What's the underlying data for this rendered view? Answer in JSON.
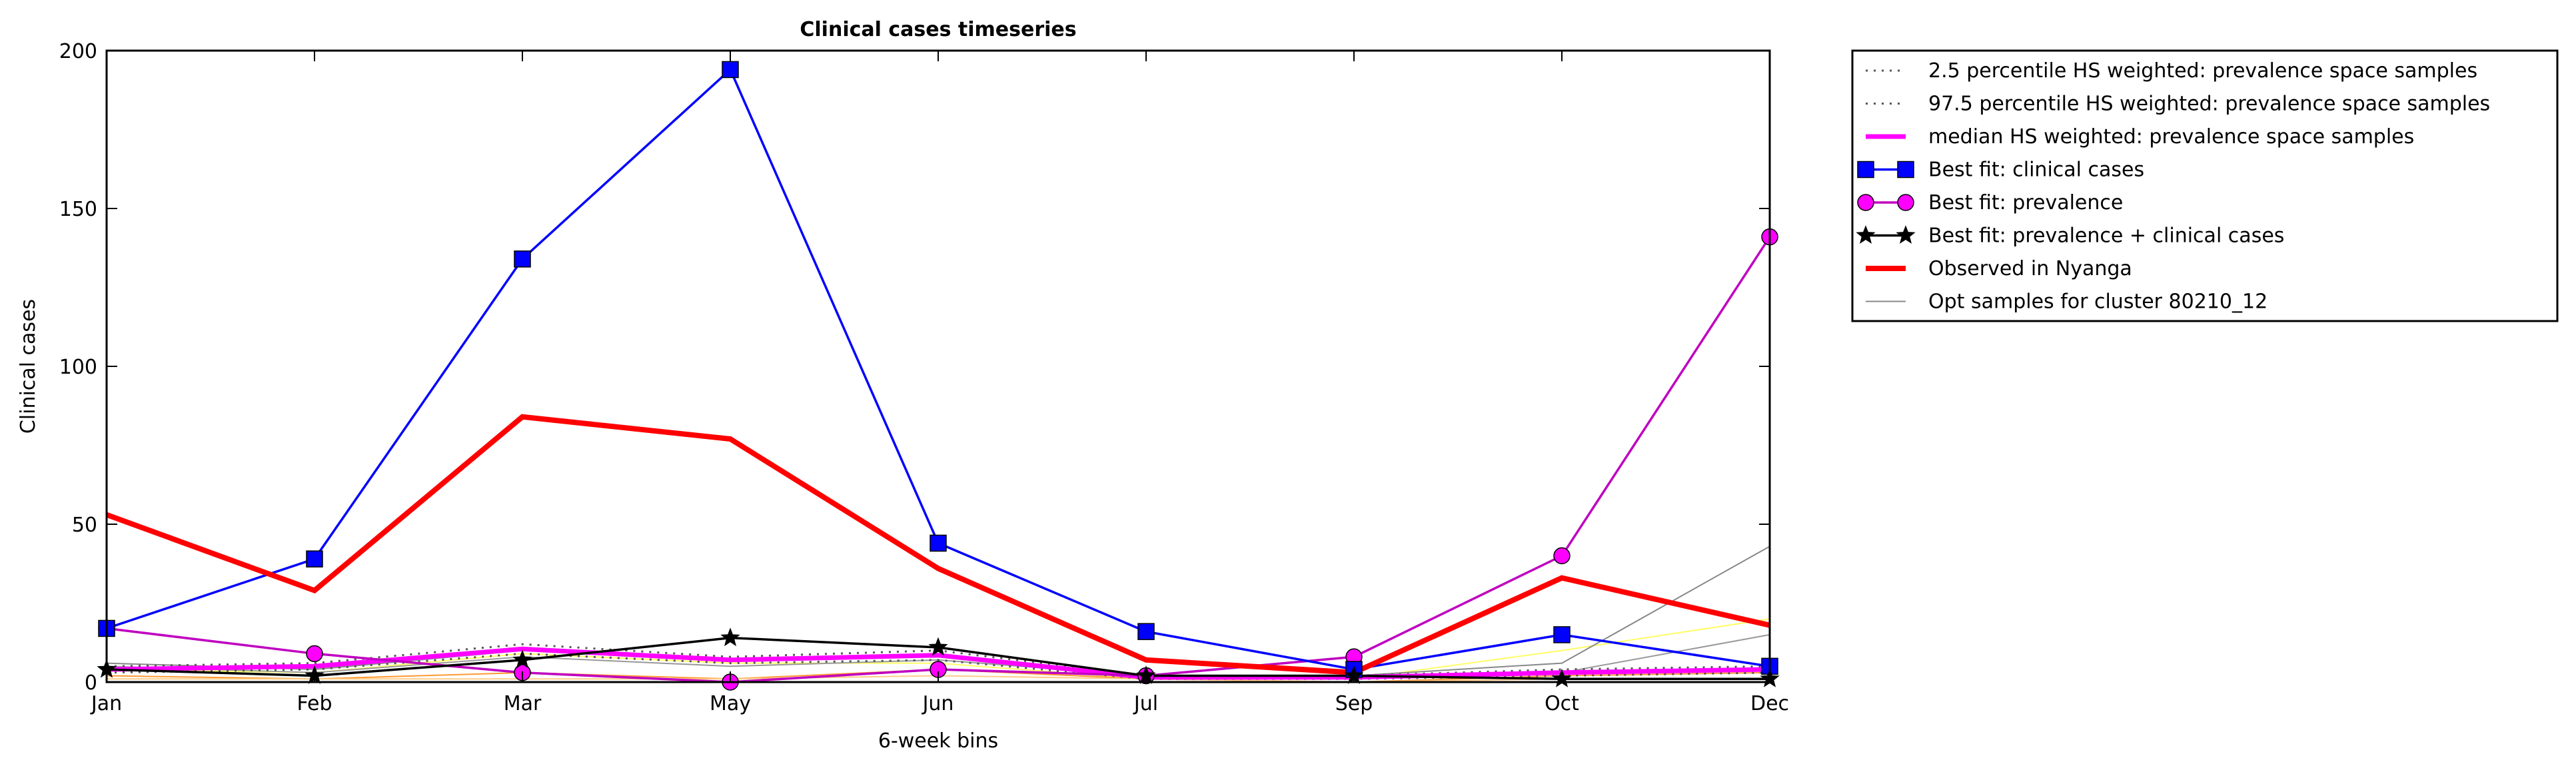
{
  "chart_data": {
    "type": "line",
    "title": "Clinical cases timeseries",
    "xlabel": "6-week bins",
    "ylabel": "Clinical cases",
    "categories": [
      "Jan",
      "Feb",
      "Mar",
      "May",
      "Jun",
      "Jul",
      "Sep",
      "Oct",
      "Dec"
    ],
    "ylim": [
      0,
      200
    ],
    "yticks": [
      0,
      50,
      100,
      150,
      200
    ],
    "grid": false,
    "legend_position": "outside-right-top",
    "series": [
      {
        "name": "2.5 percentile HS weighted: prevalence space samples",
        "style": "dotted",
        "color": "#555555",
        "values": [
          3,
          4,
          9,
          6,
          7,
          1,
          1,
          2,
          3
        ]
      },
      {
        "name": "97.5 percentile HS weighted: prevalence space samples",
        "style": "dotted",
        "color": "#555555",
        "values": [
          5,
          6,
          12,
          8,
          10,
          2,
          2,
          4,
          5
        ]
      },
      {
        "name": "median HS weighted: prevalence space samples",
        "style": "solid",
        "color": "#ff00ff",
        "values": [
          4,
          5,
          10.5,
          7,
          8.5,
          1.5,
          1.5,
          3,
          4
        ]
      },
      {
        "name": "Best fit: clinical cases",
        "style": "marker-square",
        "color": "#0000ff",
        "values": [
          17,
          39,
          134,
          194,
          44,
          16,
          4,
          15,
          5
        ]
      },
      {
        "name": "Best fit: prevalence",
        "style": "marker-circle",
        "color": "#c000c0",
        "values": [
          17,
          9,
          3,
          0,
          4,
          2,
          8,
          40,
          141
        ]
      },
      {
        "name": "Best fit: prevalence + clinical cases",
        "style": "marker-star",
        "color": "#000000",
        "values": [
          4,
          2,
          7,
          14,
          11,
          2,
          2,
          1,
          1
        ]
      },
      {
        "name": "Observed in Nyanga",
        "style": "thick",
        "color": "#ff0000",
        "values": [
          53,
          29,
          84,
          77,
          36,
          7,
          3,
          33,
          18
        ]
      },
      {
        "name": "Opt samples for cluster 80210_12",
        "style": "thin",
        "color": "#888888",
        "values": [
          6,
          4,
          10,
          7,
          8,
          1,
          2,
          6,
          43
        ]
      }
    ],
    "extra_samples": [
      {
        "color": "#ffff66",
        "values": [
          4,
          3,
          9,
          6,
          6,
          1,
          1,
          10,
          20
        ]
      },
      {
        "color": "#ff9933",
        "values": [
          2,
          1,
          3,
          1,
          4,
          1,
          0,
          2,
          3
        ]
      },
      {
        "color": "#999999",
        "values": [
          5,
          3,
          8,
          5,
          7,
          2,
          1,
          3,
          15
        ]
      },
      {
        "color": "#ffcc88",
        "values": [
          1,
          1,
          1,
          1,
          2,
          1,
          0,
          1,
          1
        ]
      }
    ]
  }
}
